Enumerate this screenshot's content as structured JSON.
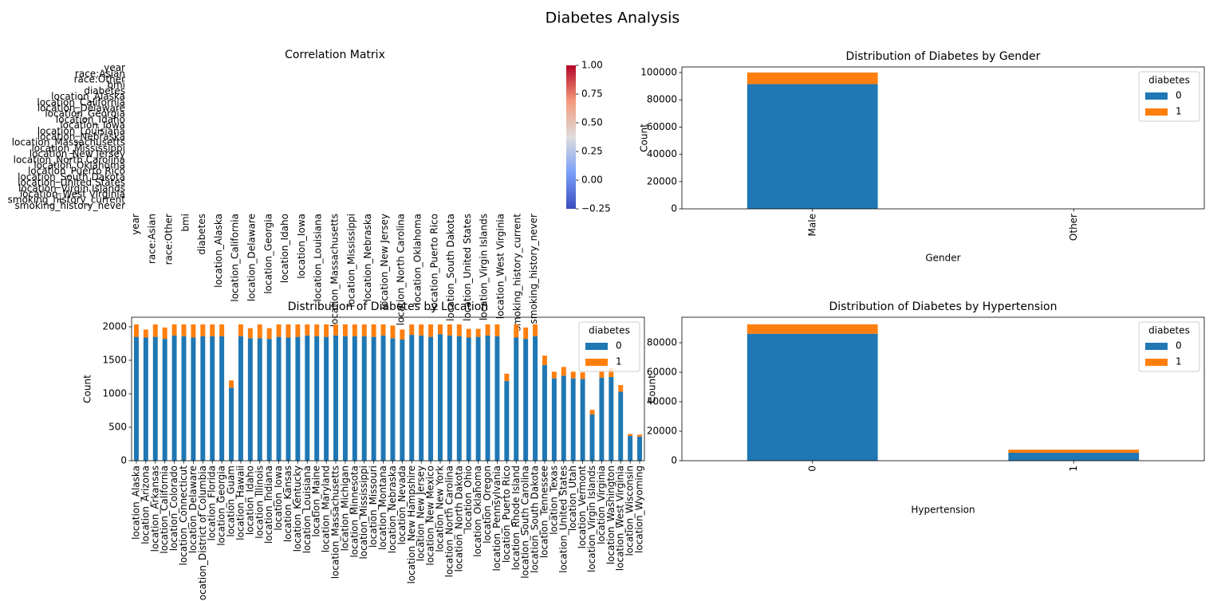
{
  "title": "Diabetes Analysis",
  "chart_data": [
    {
      "type": "heatmap",
      "title": "Correlation Matrix",
      "xcategories": [
        "year",
        "race:Asian",
        "race:Other",
        "bmi",
        "diabetes",
        "location_Alaska",
        "location_California",
        "location_Delaware",
        "location_Georgia",
        "location_Idaho",
        "location_Iowa",
        "location_Louisiana",
        "location_Massachusetts",
        "location_Mississippi",
        "location_Nebraska",
        "location_New Jersey",
        "location_North Carolina",
        "location_Oklahoma",
        "location_Puerto Rico",
        "location_South Dakota",
        "location_United States",
        "location_Virgin Islands",
        "location_West Virginia",
        "smoking_history_current",
        "smoking_history_never"
      ],
      "ycategories": [
        "year",
        "race:Asian",
        "race:Other",
        "bmi",
        "diabetes",
        "location_Alaska",
        "location_California",
        "location_Delaware",
        "location_Georgia",
        "location_Idaho",
        "location_Iowa",
        "location_Louisiana",
        "location_Nebraska",
        "location_Massachusetts",
        "location_Mississippi",
        "location_New Jersey",
        "location_North Carolina",
        "location_Oklahoma",
        "location_Puerto Rico",
        "location_South Dakota",
        "location_United States",
        "location_Virgin Islands",
        "location_West Virginia",
        "smoking_history_current",
        "smoking_history_never"
      ],
      "colormap": "coolwarm",
      "clim": [
        -0.25,
        1
      ],
      "cticks": [
        {
          "value": -0.25,
          "label": "−0.25"
        },
        {
          "value": 0,
          "label": "0.00"
        },
        0.25,
        {
          "value": 0.5,
          "label": "0.50"
        },
        0.75,
        {
          "value": 1,
          "label": "1.00"
        }
      ]
    },
    {
      "type": "stacked_bar",
      "title": "Distribution of Diabetes by Gender",
      "xlabel": "Gender",
      "ylabel": "Count",
      "categories": [
        "Male",
        "Other"
      ],
      "series": [
        {
          "name": "0",
          "color": "#1f77b4",
          "values": [
            91500,
            18
          ]
        },
        {
          "name": "1",
          "color": "#ff7f0e",
          "values": [
            8500,
            0
          ]
        }
      ],
      "ylim": [
        0,
        104100
      ],
      "yticks": [
        0,
        20000,
        40000,
        60000,
        80000,
        100000
      ],
      "legend": {
        "title": "diabetes",
        "loc": "upper right"
      }
    },
    {
      "type": "stacked_bar",
      "title": "Distribution of Diabetes by Location",
      "ylabel": "Count",
      "categories": [
        "location_Alaska",
        "location_Arizona",
        "location_Arkansas",
        "location_California",
        "location_Colorado",
        "location_Connecticut",
        "location_Delaware",
        "location_District of Columbia",
        "location_Florida",
        "location_Georgia",
        "location_Guam",
        "location_Hawaii",
        "location_Idaho",
        "location_Illinois",
        "location_Indiana",
        "location_Iowa",
        "location_Kansas",
        "location_Kentucky",
        "location_Louisiana",
        "location_Maine",
        "location_Maryland",
        "location_Massachusetts",
        "location_Michigan",
        "location_Minnesota",
        "location_Mississippi",
        "location_Missouri",
        "location_Montana",
        "location_Nebraska",
        "location_Nevada",
        "location_New Hampshire",
        "location_New Jersey",
        "location_New Mexico",
        "location_New York",
        "location_North Carolina",
        "location_North Dakota",
        "location_Ohio",
        "location_Oklahoma",
        "location_Oregon",
        "location_Pennsylvania",
        "location_Puerto Rico",
        "location_Rhode Island",
        "location_South Carolina",
        "location_South Dakota",
        "location_Tennessee",
        "location_Texas",
        "location_United States",
        "location_Utah",
        "location_Vermont",
        "location_Virgin Islands",
        "location_Virginia",
        "location_Washington",
        "location_West Virginia",
        "location_Wisconsin",
        "location_Wyoming"
      ],
      "series": [
        {
          "name": "0",
          "color": "#1f77b4",
          "values": [
            1850,
            1840,
            1850,
            1820,
            1870,
            1860,
            1840,
            1860,
            1860,
            1860,
            1090,
            1860,
            1830,
            1830,
            1820,
            1850,
            1840,
            1850,
            1870,
            1860,
            1850,
            1870,
            1860,
            1860,
            1860,
            1850,
            1870,
            1830,
            1810,
            1880,
            1870,
            1850,
            1890,
            1870,
            1860,
            1840,
            1850,
            1870,
            1860,
            1190,
            1840,
            1820,
            1860,
            1430,
            1230,
            1270,
            1230,
            1220,
            690,
            1240,
            1250,
            1030,
            370,
            360
          ]
        },
        {
          "name": "1",
          "color": "#ff7f0e",
          "values": [
            186,
            120,
            186,
            170,
            166,
            176,
            196,
            176,
            176,
            176,
            110,
            176,
            150,
            206,
            160,
            186,
            196,
            186,
            166,
            176,
            186,
            166,
            176,
            176,
            176,
            186,
            166,
            190,
            150,
            156,
            166,
            186,
            146,
            166,
            176,
            130,
            120,
            166,
            176,
            110,
            196,
            170,
            176,
            140,
            100,
            130,
            100,
            100,
            70,
            110,
            130,
            100,
            30,
            30
          ]
        }
      ],
      "ylim": [
        0,
        2143
      ],
      "yticks": [
        0,
        500,
        1000,
        1500,
        2000
      ],
      "legend": {
        "title": "diabetes",
        "loc": "upper right"
      }
    },
    {
      "type": "stacked_bar",
      "title": "Distribution of Diabetes by Hypertension",
      "xlabel": "Hypertension",
      "ylabel": "Count",
      "categories": [
        "0",
        "1"
      ],
      "series": [
        {
          "name": "0",
          "color": "#1f77b4",
          "values": [
            86103,
            5397
          ]
        },
        {
          "name": "1",
          "color": "#ff7f0e",
          "values": [
            6412,
            2088
          ]
        }
      ],
      "ylim": [
        0,
        97300
      ],
      "yticks": [
        0,
        20000,
        40000,
        60000,
        80000
      ],
      "legend": {
        "title": "diabetes",
        "loc": "upper right"
      }
    }
  ]
}
